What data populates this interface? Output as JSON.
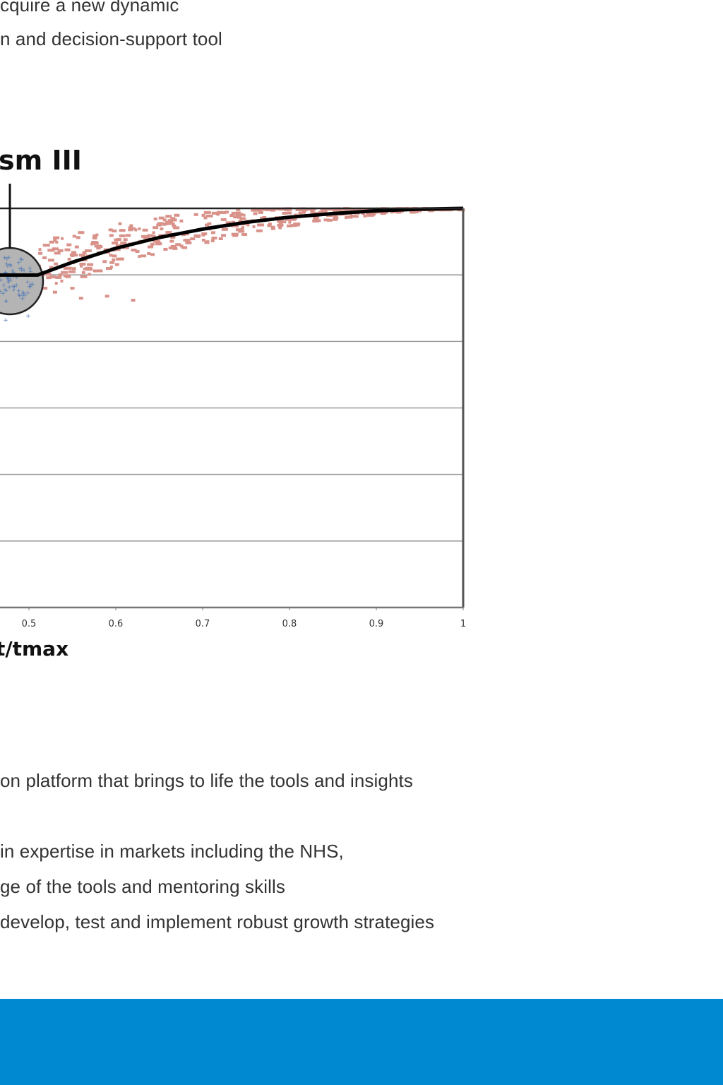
{
  "article": {
    "top_lines": [
      "cquire a new dynamic",
      "n and decision-support tool"
    ],
    "bottom_lines": [
      "on platform that brings to life the tools and insights",
      "in expertise in markets including the NHS,",
      "ge of the tools and mentoring skills",
      "develop, test and implement robust growth strategies"
    ]
  },
  "footer": {
    "text": "",
    "bg_color": "#0088d1"
  },
  "chart_data": {
    "type": "scatter",
    "title": "sm III",
    "xlabel": "t/tmax",
    "ylabel": "",
    "x_ticks": [
      "0.5",
      "0.6",
      "0.7",
      "0.8",
      "0.9",
      "1"
    ],
    "xlim": [
      0.5,
      1.0
    ],
    "ylim": [
      0.0,
      1.0
    ],
    "grid": true,
    "legend": "none",
    "colors": {
      "scatter_primary": "#d9928a",
      "scatter_secondary": "#5a7fb5",
      "fit_line": "#000000",
      "highlight_circle": "#b4b4b4",
      "grid": "#9a9a9a"
    },
    "series": [
      {
        "kind": "fit_line",
        "x": [
          0.5,
          0.51,
          0.55,
          0.6,
          0.65,
          0.7,
          0.75,
          0.8,
          0.85,
          0.9,
          0.95,
          1.0
        ],
        "y": [
          0.833,
          0.833,
          0.865,
          0.9,
          0.927,
          0.948,
          0.965,
          0.978,
          0.987,
          0.994,
          0.998,
          1.0
        ]
      }
    ]
  }
}
